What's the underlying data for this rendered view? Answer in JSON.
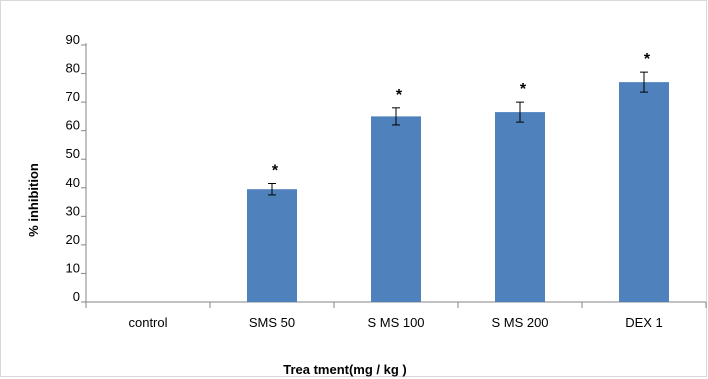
{
  "chart_data": {
    "type": "bar",
    "categories": [
      "control",
      "SMS 50",
      "S MS 100",
      "S MS 200",
      "DEX 1"
    ],
    "values": [
      0,
      39.5,
      65,
      66.5,
      77
    ],
    "errors": [
      0,
      2,
      3,
      3.5,
      3.5
    ],
    "annotations": [
      "",
      "*",
      "*",
      "*",
      "*"
    ],
    "xlabel": "Trea tment(mg / kg )",
    "ylabel": "% inhibition",
    "ylim": [
      0,
      90
    ],
    "yticks": [
      "0",
      "10",
      "20",
      "30",
      "40",
      "50",
      "60",
      "70",
      "80",
      "90"
    ],
    "grid": false,
    "bar_color": "#4f81bd"
  }
}
